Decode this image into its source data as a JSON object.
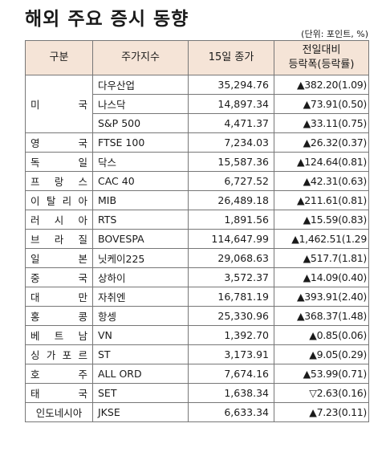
{
  "title": "해외 주요 증시 동향",
  "unit": "(단위: 포인트, %)",
  "headers": {
    "col1": "구분",
    "col2": "주가지수",
    "col3": "15일 종가",
    "col4_line1": "전일대비",
    "col4_line2": "등락폭(등락률)"
  },
  "usa": {
    "country": "미 국",
    "rows": [
      {
        "index": "다우산업",
        "close": "35,294.76",
        "change": "▲382.20(1.09)"
      },
      {
        "index": "나스닥",
        "close": "14,897.34",
        "change": "▲73.91(0.50)"
      },
      {
        "index": "S&P 500",
        "close": "4,471.37",
        "change": "▲33.11(0.75)"
      }
    ]
  },
  "rows": [
    {
      "country": "영 국",
      "index": "FTSE 100",
      "close": "7,234.03",
      "change": "▲26.32(0.37)"
    },
    {
      "country": "독 일",
      "index": "닥스",
      "close": "15,587.36",
      "change": "▲124.64(0.81)"
    },
    {
      "country": "프 랑 스",
      "index": "CAC 40",
      "close": "6,727.52",
      "change": "▲42.31(0.63)"
    },
    {
      "country": "이 탈 리 아",
      "index": "MIB",
      "close": "26,489.18",
      "change": "▲211.61(0.81)"
    },
    {
      "country": "러 시 아",
      "index": "RTS",
      "close": "1,891.56",
      "change": "▲15.59(0.83)"
    },
    {
      "country": "브 라 질",
      "index": "BOVESPA",
      "close": "114,647.99",
      "change": "▲1,462.51(1.29"
    },
    {
      "country": "일 본",
      "index": "닛케이225",
      "close": "29,068.63",
      "change": "▲517.7(1.81)"
    },
    {
      "country": "중 국",
      "index": "상하이",
      "close": "3,572.37",
      "change": "▲14.09(0.40)"
    },
    {
      "country": "대 만",
      "index": "자취엔",
      "close": "16,781.19",
      "change": "▲393.91(2.40)"
    },
    {
      "country": "홍 콩",
      "index": "항셍",
      "close": "25,330.96",
      "change": "▲368.37(1.48)"
    },
    {
      "country": "베 트 남",
      "index": "VN",
      "close": "1,392.70",
      "change": "▲0.85(0.06)"
    },
    {
      "country": "싱 가 포 르",
      "index": "ST",
      "close": "3,173.91",
      "change": "▲9.05(0.29)"
    },
    {
      "country": "호 주",
      "index": "ALL ORD",
      "close": "7,674.16",
      "change": "▲53.99(0.71)"
    },
    {
      "country": "태 국",
      "index": "SET",
      "close": "1,638.34",
      "change": "▽2.63(0.16)"
    },
    {
      "country": "인도네시아",
      "index": "JKSE",
      "close": "6,633.34",
      "change": "▲7.23(0.11)"
    }
  ]
}
